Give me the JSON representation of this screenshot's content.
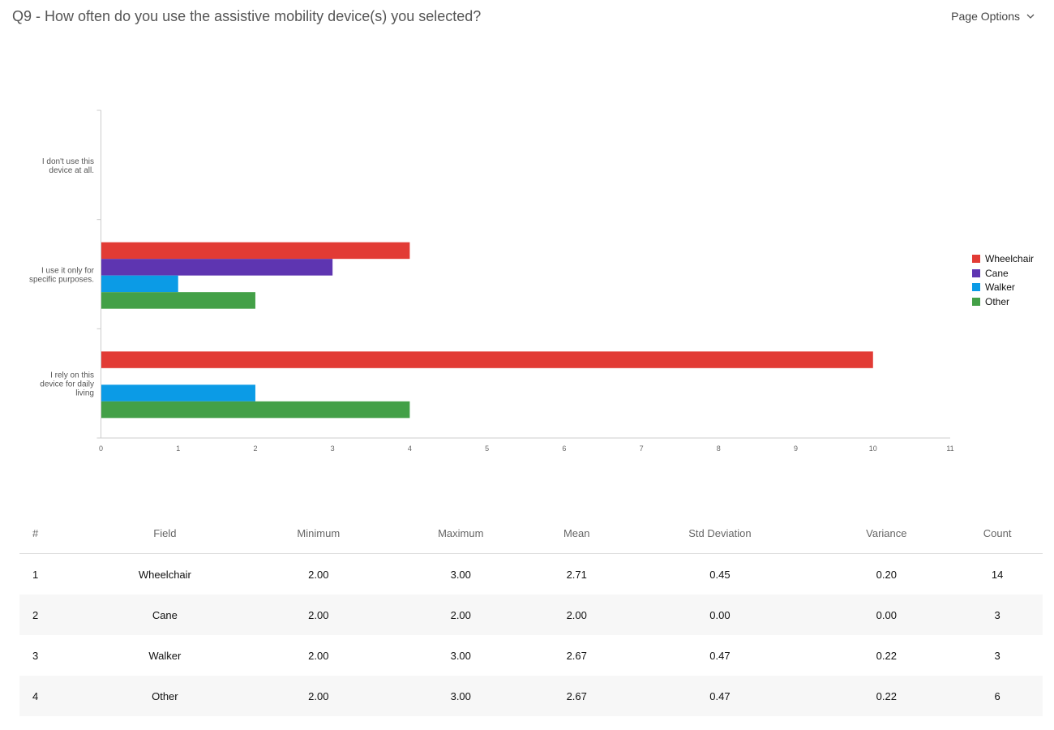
{
  "header": {
    "title": "Q9 - How often do you use the assistive mobility device(s) you selected?",
    "page_options_label": "Page Options",
    "page_options_icon": "chevron-down-icon"
  },
  "chart_data": {
    "type": "bar",
    "orientation": "horizontal",
    "categories": [
      [
        "I don't use this",
        "device at all."
      ],
      [
        "I use it only for",
        "specific purposes."
      ],
      [
        "I rely on this",
        "device for daily",
        "living"
      ]
    ],
    "series": [
      {
        "name": "Wheelchair",
        "color": "#e23b35",
        "values": [
          0,
          4,
          10
        ]
      },
      {
        "name": "Cane",
        "color": "#5e35b1",
        "values": [
          0,
          3,
          0
        ]
      },
      {
        "name": "Walker",
        "color": "#0b9be6",
        "values": [
          0,
          1,
          2
        ]
      },
      {
        "name": "Other",
        "color": "#43a047",
        "values": [
          0,
          2,
          4
        ]
      }
    ],
    "xlim": [
      0,
      11
    ],
    "xticks": [
      "0",
      "1",
      "2",
      "3",
      "4",
      "5",
      "6",
      "7",
      "8",
      "9",
      "10",
      "11"
    ],
    "grid": false,
    "legend_position": "right"
  },
  "table": {
    "headers": [
      "#",
      "Field",
      "Minimum",
      "Maximum",
      "Mean",
      "Std Deviation",
      "Variance",
      "Count"
    ],
    "rows": [
      [
        "1",
        "Wheelchair",
        "2.00",
        "3.00",
        "2.71",
        "0.45",
        "0.20",
        "14"
      ],
      [
        "2",
        "Cane",
        "2.00",
        "2.00",
        "2.00",
        "0.00",
        "0.00",
        "3"
      ],
      [
        "3",
        "Walker",
        "2.00",
        "3.00",
        "2.67",
        "0.47",
        "0.22",
        "3"
      ],
      [
        "4",
        "Other",
        "2.00",
        "3.00",
        "2.67",
        "0.47",
        "0.22",
        "6"
      ]
    ]
  }
}
